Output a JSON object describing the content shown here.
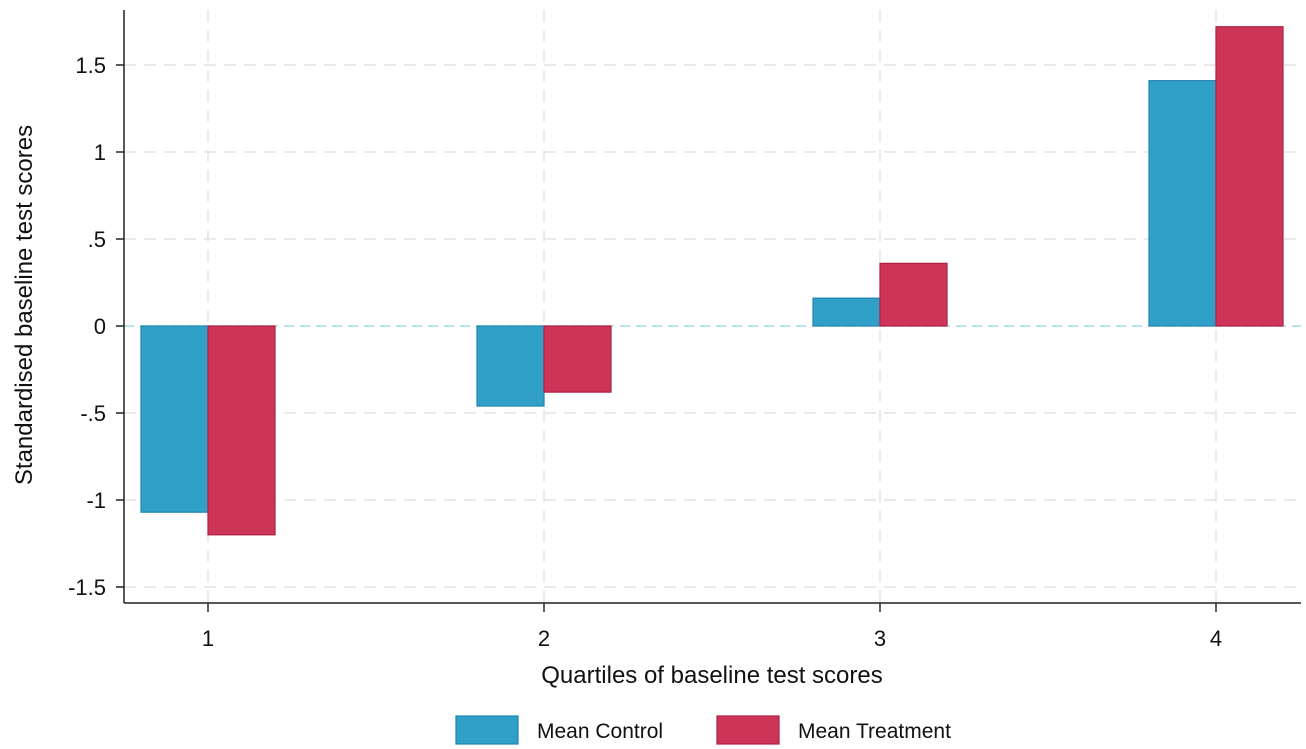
{
  "chart_data": {
    "type": "bar",
    "title": "",
    "xlabel": "Quartiles of baseline test scores",
    "ylabel": "Standardised baseline test scores",
    "categories": [
      "1",
      "2",
      "3",
      "4"
    ],
    "series": [
      {
        "name": "Mean Control",
        "values": [
          -1.07,
          -0.46,
          0.16,
          1.41
        ],
        "color": "#31a0c8"
      },
      {
        "name": "Mean Treatment",
        "values": [
          -1.2,
          -0.38,
          0.36,
          1.72
        ],
        "color": "#cc3458"
      }
    ],
    "yticks": [
      1.5,
      1,
      0.5,
      0,
      -0.5,
      -1,
      -1.5
    ],
    "ytick_labels": [
      "1.5",
      "1",
      ".5",
      "0",
      "-.5",
      "-1",
      "-1.5"
    ],
    "ylim": [
      -1.6,
      1.8
    ],
    "grid": true,
    "zero_line": true,
    "legend_position": "bottom-center"
  }
}
